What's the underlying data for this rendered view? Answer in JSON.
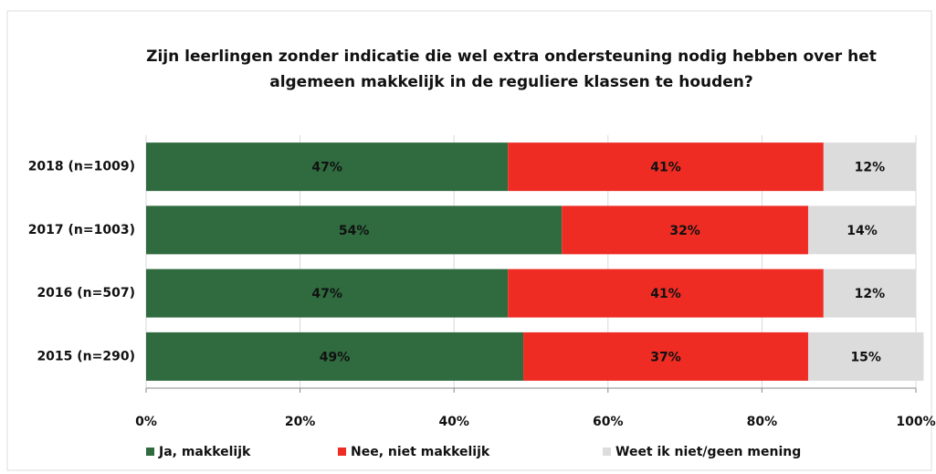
{
  "chart_data": {
    "type": "stacked-bar-horizontal",
    "title": [
      "Zijn leerlingen zonder indicatie die wel extra ondersteuning nodig hebben over het",
      "algemeen makkelijk in de reguliere klassen te houden?"
    ],
    "categories": [
      "2018 (n=1009)",
      "2017 (n=1003)",
      "2016 (n=507)",
      "2015 (n=290)"
    ],
    "series": [
      {
        "name": "Ja, makkelijk",
        "color": "#2f6b3f",
        "label_color": "#3f5e46",
        "values": [
          47,
          54,
          47,
          49
        ],
        "value_labels": [
          "47%",
          "54%",
          "47%",
          "49%"
        ]
      },
      {
        "name": "Nee, niet makkelijk",
        "color": "#ee2c24",
        "label_color": "#b8332b",
        "values": [
          41,
          32,
          41,
          37
        ],
        "value_labels": [
          "41%",
          "32%",
          "41%",
          "37%"
        ]
      },
      {
        "name": "Weet ik niet/geen mening",
        "color": "#dcdcdc",
        "label_color": "#222222",
        "values": [
          12,
          14,
          12,
          15
        ],
        "value_labels": [
          "12%",
          "14%",
          "12%",
          "15%"
        ]
      }
    ],
    "xlim": [
      0,
      100
    ],
    "xticks": [
      {
        "value": 0,
        "label": "0%"
      },
      {
        "value": 20,
        "label": "20%"
      },
      {
        "value": 40,
        "label": "40%"
      },
      {
        "value": 60,
        "label": "60%"
      },
      {
        "value": 80,
        "label": "80%"
      },
      {
        "value": 100,
        "label": "100%"
      }
    ],
    "grid": true
  }
}
